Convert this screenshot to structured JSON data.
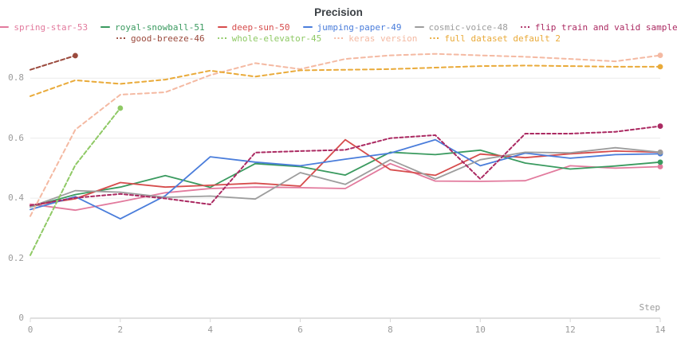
{
  "title": "Precision",
  "axes": {
    "x_label": "Step",
    "x_tick_labels": [
      "0",
      "2",
      "4",
      "6",
      "8",
      "10",
      "12",
      "14"
    ],
    "y_tick_labels": [
      "0",
      "0.2",
      "0.4",
      "0.6",
      "0.8"
    ]
  },
  "colors": {
    "grid": "#ececec",
    "axis": "#e0e0e0",
    "tick": "#d8d8d8",
    "tick_text": "#9b9b9b",
    "title_text": "#3b4045"
  },
  "chart_data": {
    "type": "line",
    "title": "Precision",
    "xlabel": "Step",
    "ylabel": "",
    "xlim": [
      0,
      14
    ],
    "ylim": [
      0,
      0.9
    ],
    "x_ticks": [
      0,
      2,
      4,
      6,
      8,
      10,
      12,
      14
    ],
    "y_ticks": [
      0,
      0.2,
      0.4,
      0.6,
      0.8
    ],
    "grid": "horizontal",
    "legend_position": "top",
    "series": [
      {
        "name": "spring-star-53",
        "color": "#e27a9d",
        "style": "solid",
        "dash": "",
        "legend_row": 1,
        "values": [
          0.38,
          0.36,
          0.388,
          0.418,
          0.432,
          0.437,
          0.435,
          0.432,
          0.515,
          0.457,
          0.456,
          0.458,
          0.508,
          0.5,
          0.505
        ]
      },
      {
        "name": "royal-snowball-51",
        "color": "#3a9a5f",
        "style": "solid",
        "dash": "",
        "legend_row": 1,
        "values": [
          0.371,
          0.412,
          0.437,
          0.475,
          0.436,
          0.515,
          0.505,
          0.477,
          0.553,
          0.545,
          0.56,
          0.517,
          0.497,
          0.507,
          0.52
        ]
      },
      {
        "name": "deep-sun-50",
        "color": "#d64c4c",
        "style": "solid",
        "dash": "",
        "legend_row": 1,
        "values": [
          0.375,
          0.398,
          0.452,
          0.437,
          0.443,
          0.45,
          0.44,
          0.595,
          0.495,
          0.476,
          0.547,
          0.535,
          0.548,
          0.557,
          0.553
        ]
      },
      {
        "name": "jumping-paper-49",
        "color": "#4a7ddb",
        "style": "solid",
        "dash": "",
        "legend_row": 1,
        "values": [
          0.362,
          0.405,
          0.331,
          0.408,
          0.538,
          0.52,
          0.508,
          0.53,
          0.55,
          0.595,
          0.508,
          0.55,
          0.533,
          0.545,
          0.548
        ]
      },
      {
        "name": "cosmic-voice-48",
        "color": "#9d9d9d",
        "style": "solid",
        "dash": "",
        "legend_row": 1,
        "values": [
          0.371,
          0.425,
          0.42,
          0.403,
          0.407,
          0.397,
          0.485,
          0.446,
          0.528,
          0.464,
          0.528,
          0.553,
          0.551,
          0.568,
          0.553
        ]
      },
      {
        "name": "flip train and valid sample",
        "color": "#ab2a62",
        "style": "dashed",
        "dash": "4 3",
        "legend_row": 1,
        "values": [
          0.376,
          0.401,
          0.414,
          0.399,
          0.379,
          0.552,
          0.557,
          0.561,
          0.6,
          0.61,
          0.464,
          0.615,
          0.615,
          0.621,
          0.64
        ]
      },
      {
        "name": "good-breeze-46",
        "color": "#9b4a3d",
        "style": "dashed",
        "dash": "5 3",
        "legend_row": 2,
        "x": [
          0,
          1
        ],
        "values": [
          0.828,
          0.875
        ]
      },
      {
        "name": "whole-elevator-45",
        "color": "#8fc965",
        "style": "dashed",
        "dash": "5 3",
        "legend_row": 2,
        "x": [
          0,
          1,
          2
        ],
        "values": [
          0.21,
          0.51,
          0.7
        ]
      },
      {
        "name": "keras version",
        "color": "#f4b9a2",
        "style": "dashed",
        "dash": "5 4",
        "legend_row": 2,
        "values": [
          0.34,
          0.628,
          0.745,
          0.753,
          0.81,
          0.85,
          0.83,
          0.864,
          0.876,
          0.881,
          0.876,
          0.871,
          0.864,
          0.856,
          0.876
        ]
      },
      {
        "name": "full dataset default 2",
        "color": "#e9aa39",
        "style": "dashed",
        "dash": "5 4",
        "legend_row": 2,
        "values": [
          0.74,
          0.793,
          0.781,
          0.795,
          0.825,
          0.805,
          0.826,
          0.828,
          0.83,
          0.835,
          0.84,
          0.842,
          0.84,
          0.838,
          0.838
        ]
      }
    ]
  }
}
